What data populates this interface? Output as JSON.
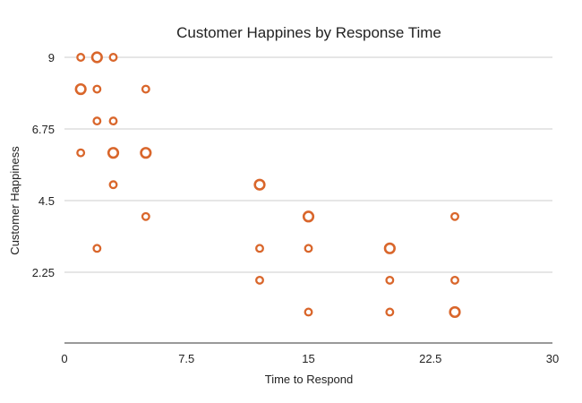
{
  "chart_data": {
    "type": "scatter",
    "title": "Customer Happines by Response Time",
    "xlabel": "Time to Respond",
    "ylabel": "Customer Happiness",
    "xlim": [
      0,
      30
    ],
    "ylim": [
      0,
      9
    ],
    "xticks": [
      "0",
      "7.5",
      "15",
      "22.5",
      "30"
    ],
    "yticks": [
      "2.25",
      "4.5",
      "6.75",
      "9"
    ],
    "grid": "horizontal",
    "color": "#d9662b",
    "points": [
      {
        "x": 1,
        "y": 9,
        "size": 1
      },
      {
        "x": 2,
        "y": 9,
        "size": 2
      },
      {
        "x": 3,
        "y": 9,
        "size": 1
      },
      {
        "x": 1,
        "y": 8,
        "size": 2
      },
      {
        "x": 2,
        "y": 8,
        "size": 1
      },
      {
        "x": 5,
        "y": 8,
        "size": 1
      },
      {
        "x": 2,
        "y": 7,
        "size": 1
      },
      {
        "x": 3,
        "y": 7,
        "size": 1
      },
      {
        "x": 1,
        "y": 6,
        "size": 1
      },
      {
        "x": 3,
        "y": 6,
        "size": 2
      },
      {
        "x": 5,
        "y": 6,
        "size": 2
      },
      {
        "x": 3,
        "y": 5,
        "size": 1
      },
      {
        "x": 12,
        "y": 5,
        "size": 2
      },
      {
        "x": 5,
        "y": 4,
        "size": 1
      },
      {
        "x": 15,
        "y": 4,
        "size": 2
      },
      {
        "x": 24,
        "y": 4,
        "size": 1
      },
      {
        "x": 2,
        "y": 3,
        "size": 1
      },
      {
        "x": 12,
        "y": 3,
        "size": 1
      },
      {
        "x": 15,
        "y": 3,
        "size": 1
      },
      {
        "x": 20,
        "y": 3,
        "size": 2
      },
      {
        "x": 12,
        "y": 2,
        "size": 1
      },
      {
        "x": 20,
        "y": 2,
        "size": 1
      },
      {
        "x": 24,
        "y": 2,
        "size": 1
      },
      {
        "x": 15,
        "y": 1,
        "size": 1
      },
      {
        "x": 20,
        "y": 1,
        "size": 1
      },
      {
        "x": 24,
        "y": 1,
        "size": 2
      }
    ]
  }
}
